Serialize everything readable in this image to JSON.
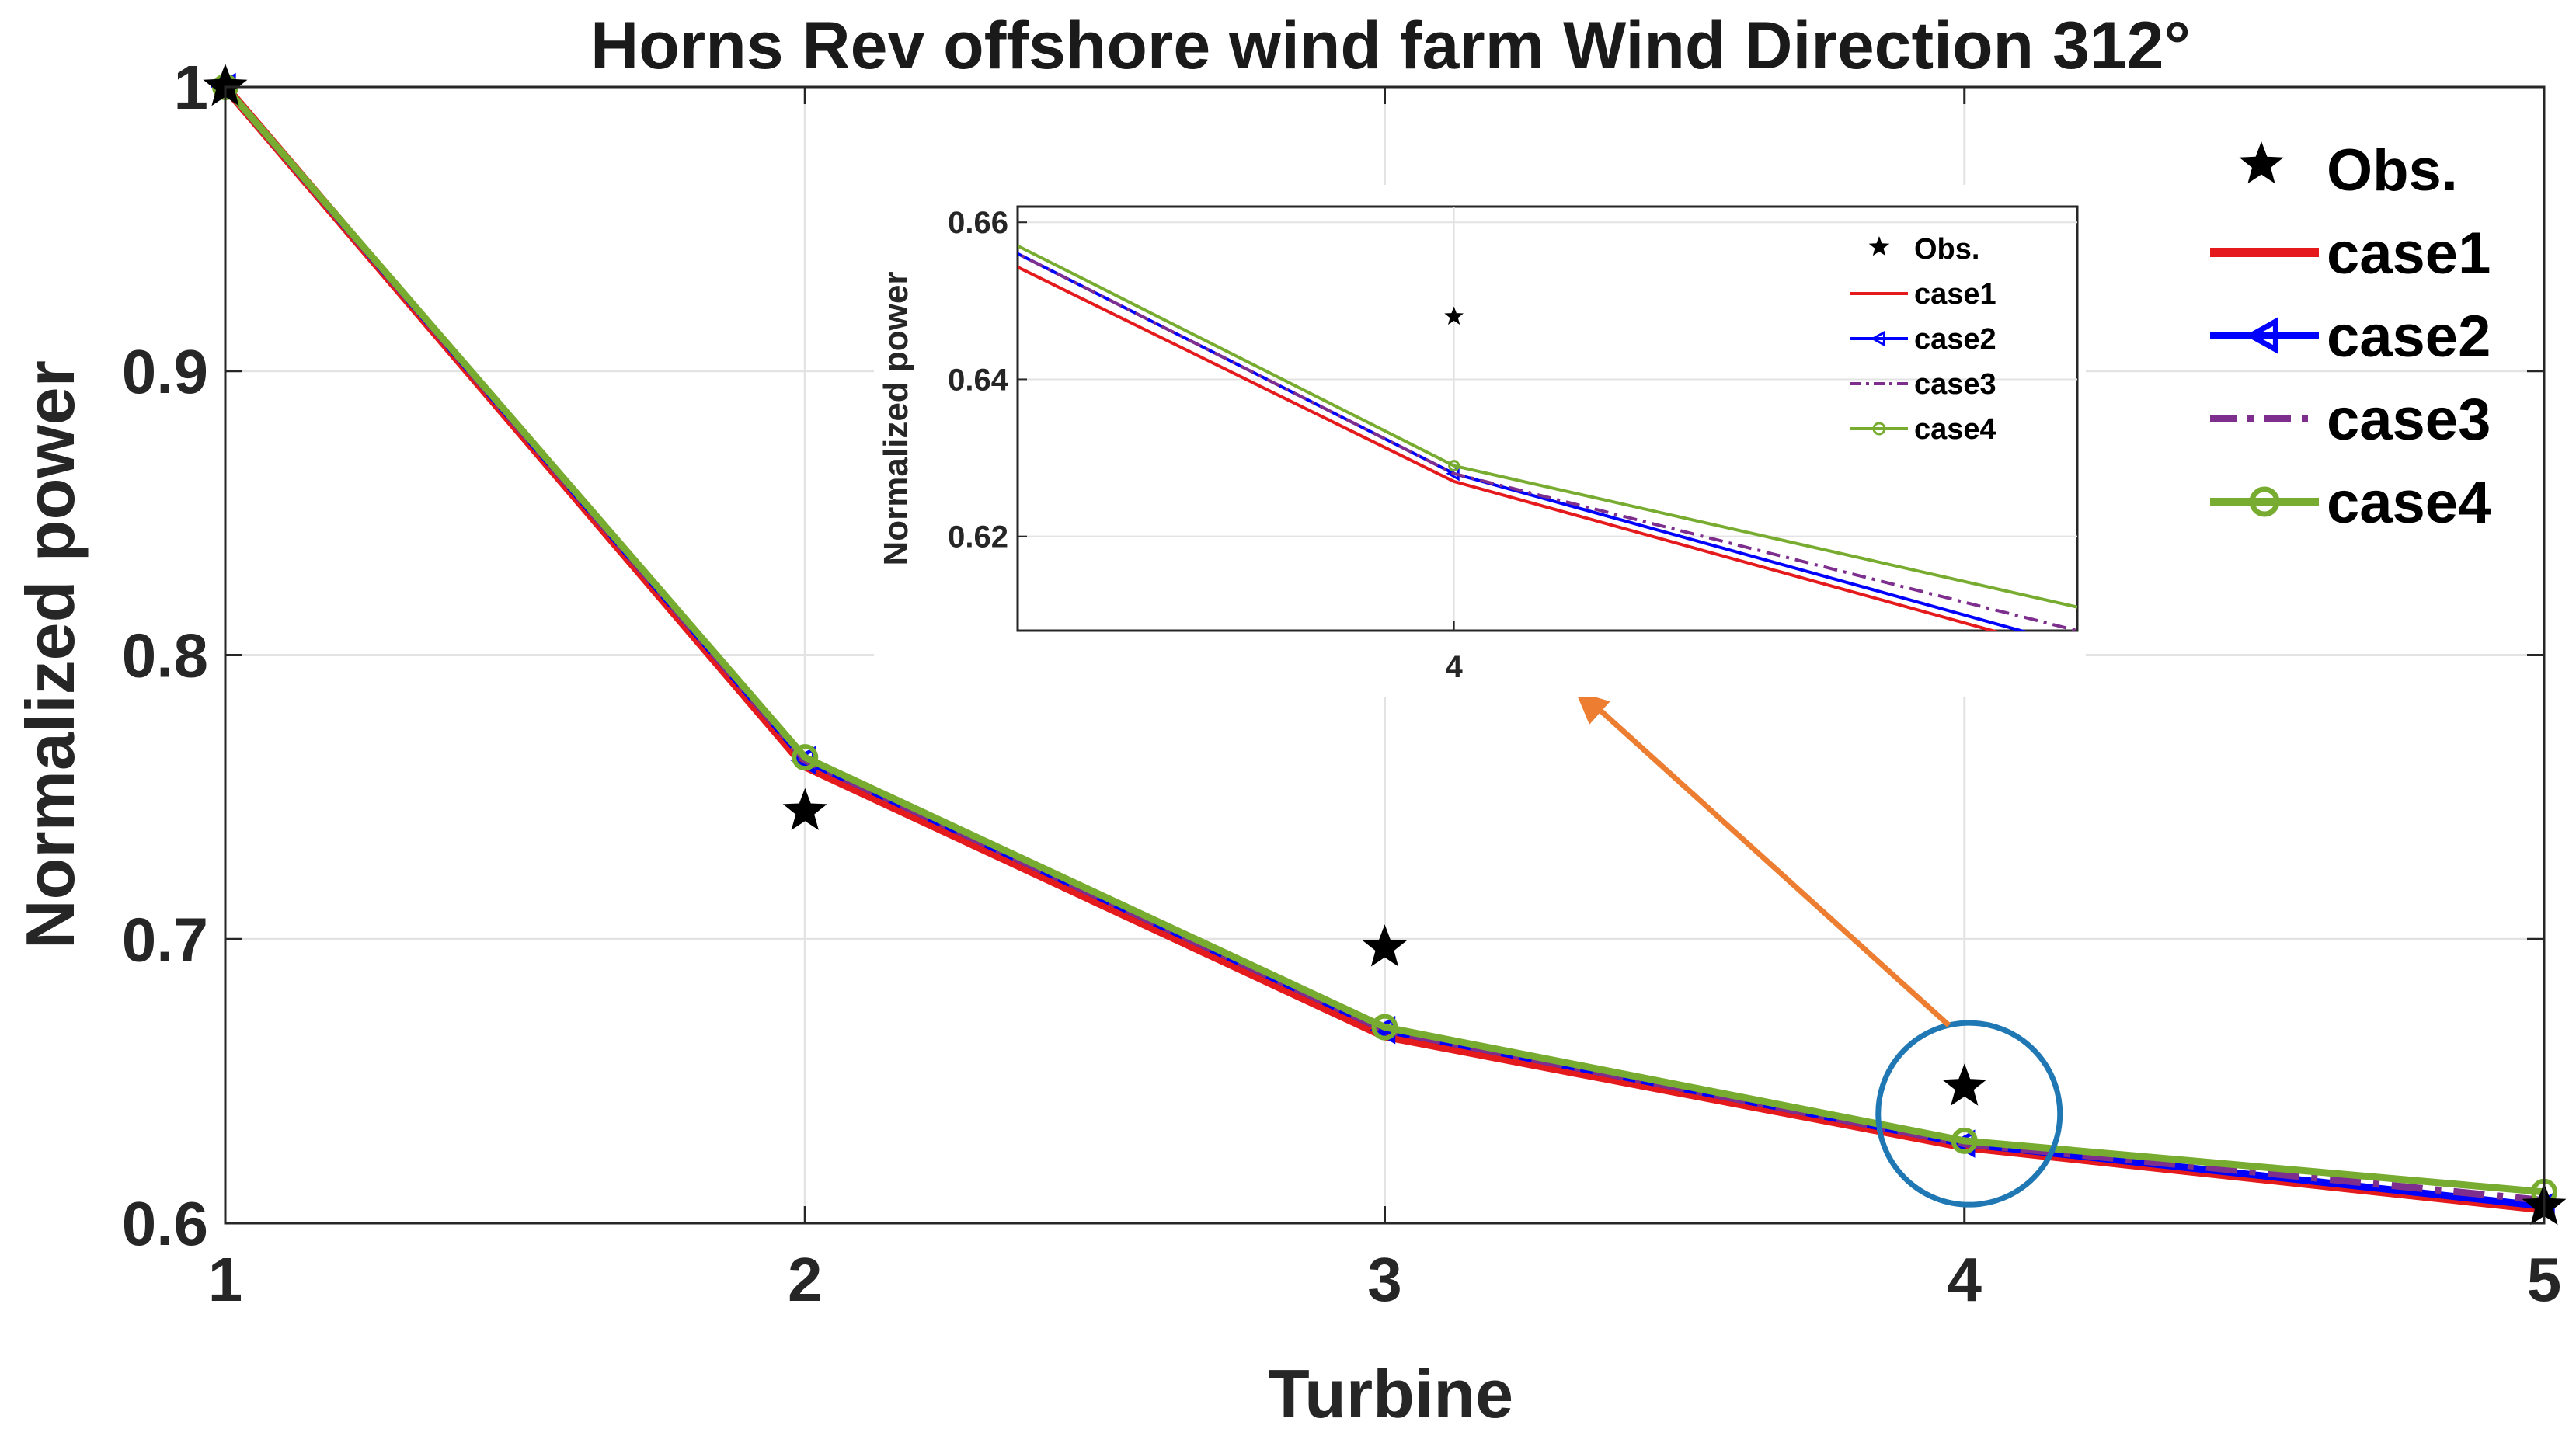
{
  "chart_data": {
    "type": "line",
    "title": "Horns Rev offshore wind farm Wind Direction 312°",
    "xlabel": "Turbine",
    "ylabel": "Normalized power",
    "x": [
      1,
      2,
      3,
      4,
      5
    ],
    "xlim": [
      1,
      5
    ],
    "ylim": [
      0.6,
      1.0
    ],
    "xticks": [
      "1",
      "2",
      "3",
      "4",
      "5"
    ],
    "yticks": [
      "0.6",
      "0.7",
      "0.8",
      "0.9",
      "1"
    ],
    "grid": true,
    "legend_position": "top-right",
    "series": [
      {
        "name": "Obs.",
        "style": "star-marker",
        "color": "#000000",
        "values": [
          1.0,
          0.745,
          0.697,
          0.648,
          0.606
        ]
      },
      {
        "name": "case1",
        "style": "solid",
        "color": "#e41a1c",
        "values": [
          1.0,
          0.761,
          0.666,
          0.627,
          0.605
        ]
      },
      {
        "name": "case2",
        "style": "solid-left-triangle",
        "color": "#0000ff",
        "values": [
          1.0,
          0.763,
          0.668,
          0.628,
          0.606
        ]
      },
      {
        "name": "case3",
        "style": "dash-dot",
        "color": "#7e2f8e",
        "values": [
          1.0,
          0.763,
          0.668,
          0.628,
          0.608
        ]
      },
      {
        "name": "case4",
        "style": "solid-circle",
        "color": "#77ac30",
        "values": [
          1.0,
          0.764,
          0.669,
          0.629,
          0.611
        ]
      }
    ],
    "annotations": {
      "highlight_circle_color": "#1f77b4",
      "arrow_color": "#ed7d31"
    },
    "inset": {
      "ylabel": "Normalized power",
      "xlim": [
        3.3,
        5.0
      ],
      "ylim": [
        0.608,
        0.662
      ],
      "xticks": [
        "4"
      ],
      "yticks": [
        "0.62",
        "0.64",
        "0.66"
      ],
      "legend_position": "top-right",
      "legend": [
        "Obs.",
        "case1",
        "case2",
        "case3",
        "case4"
      ]
    }
  }
}
